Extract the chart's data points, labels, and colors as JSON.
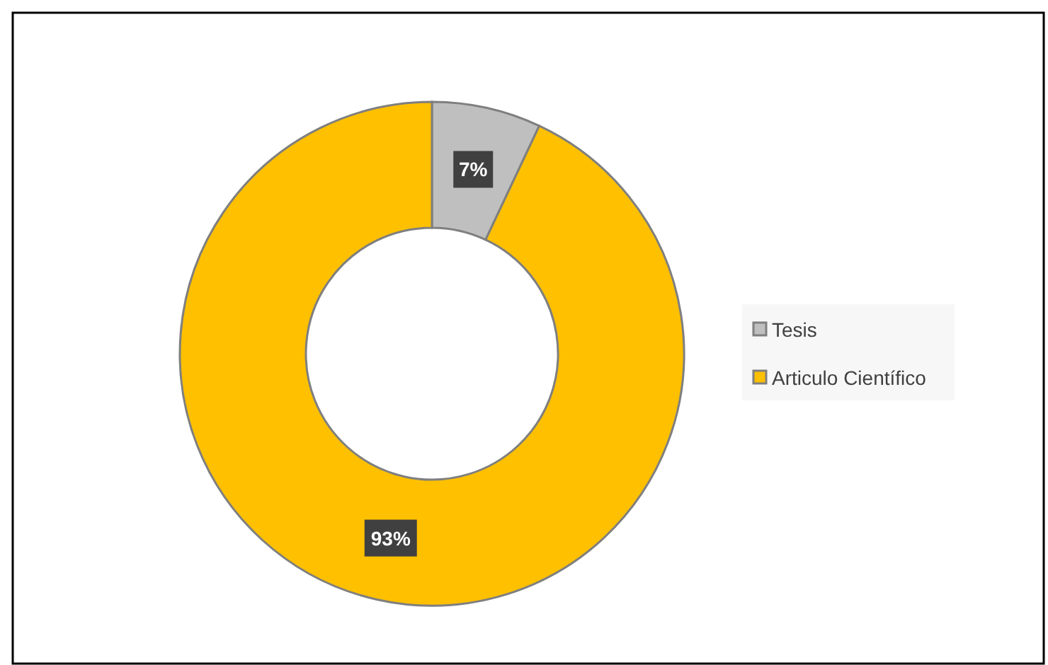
{
  "chart_data": {
    "type": "donut",
    "categories": [
      "Tesis",
      "Articulo Científico"
    ],
    "values": [
      7,
      93
    ],
    "colors": [
      "#bfbfbf",
      "#ffc000"
    ],
    "value_labels": [
      "7%",
      "93%"
    ],
    "legend": "right"
  }
}
